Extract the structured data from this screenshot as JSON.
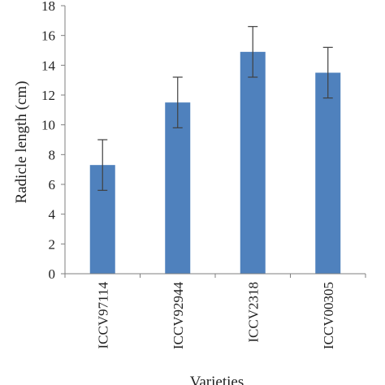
{
  "chart_data": {
    "type": "bar",
    "categories": [
      "ICCV97114",
      "ICCV92944",
      "ICCV2318",
      "ICCV00305"
    ],
    "values": [
      7.3,
      11.5,
      14.9,
      13.5
    ],
    "errors": [
      1.7,
      1.7,
      1.7,
      1.7
    ],
    "xlabel": "Varieties",
    "ylabel": "Radicle length (cm)",
    "ylim": [
      0,
      18
    ],
    "yticks": [
      "0",
      "2",
      "4",
      "6",
      "8",
      "10",
      "12",
      "14",
      "16",
      "18"
    ],
    "grid": false,
    "legend": "none",
    "bar_color": "#4f81bd",
    "error_bar_color": "#404040",
    "axis_color": "#7f7f7f"
  }
}
